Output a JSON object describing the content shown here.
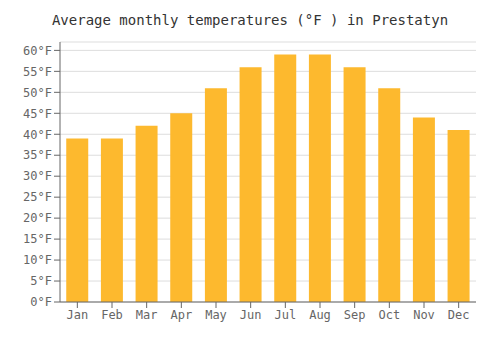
{
  "chart_data": {
    "type": "bar",
    "title": "Average monthly temperatures (°F ) in Prestatyn",
    "categories": [
      "Jan",
      "Feb",
      "Mar",
      "Apr",
      "May",
      "Jun",
      "Jul",
      "Aug",
      "Sep",
      "Oct",
      "Nov",
      "Dec"
    ],
    "values": [
      39,
      39,
      42,
      45,
      51,
      56,
      59,
      59,
      56,
      51,
      44,
      41
    ],
    "color": "#FDB92E",
    "ylim": [
      0,
      62
    ],
    "yticks": [
      {
        "value": 0,
        "label": "0°F"
      },
      {
        "value": 5,
        "label": "5°F"
      },
      {
        "value": 10,
        "label": "10°F"
      },
      {
        "value": 15,
        "label": "15°F"
      },
      {
        "value": 20,
        "label": "20°F"
      },
      {
        "value": 25,
        "label": "25°F"
      },
      {
        "value": 30,
        "label": "30°F"
      },
      {
        "value": 35,
        "label": "35°F"
      },
      {
        "value": 40,
        "label": "40°F"
      },
      {
        "value": 45,
        "label": "45°F"
      },
      {
        "value": 50,
        "label": "50°F"
      },
      {
        "value": 55,
        "label": "55°F"
      },
      {
        "value": 60,
        "label": "60°F"
      }
    ],
    "grid": true
  }
}
